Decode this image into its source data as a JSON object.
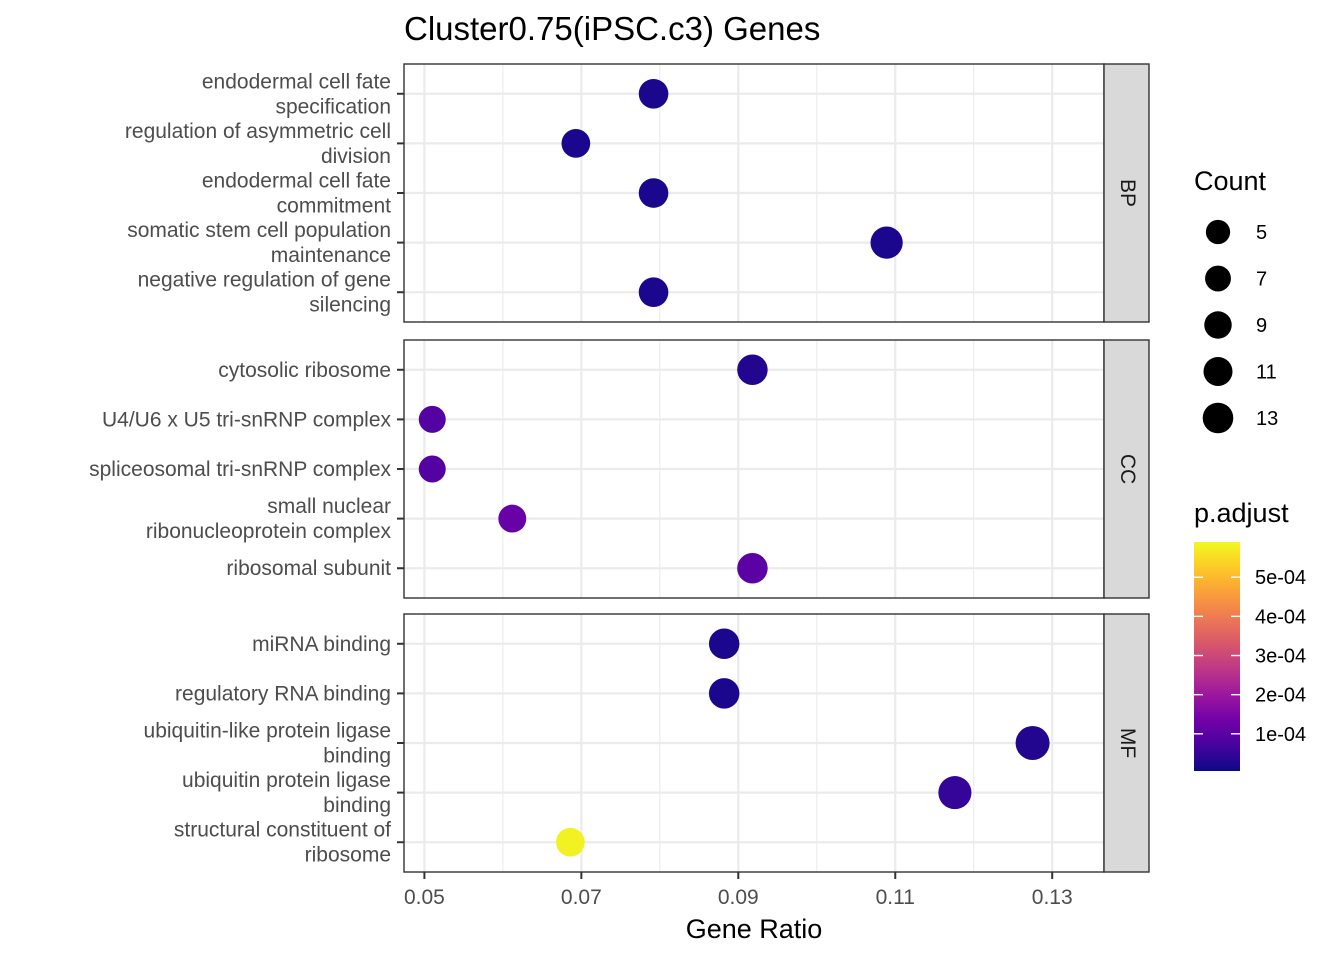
{
  "chart_data": {
    "type": "scatter",
    "title": "Cluster0.75(iPSC.c3) Genes",
    "xlabel": "Gene Ratio",
    "ylabel": "",
    "xlim": [
      0.0474,
      0.1366
    ],
    "x_ticks": [
      0.05,
      0.07,
      0.09,
      0.11,
      0.13
    ],
    "x_tick_labels": [
      "0.05",
      "0.07",
      "0.09",
      "0.11",
      "0.13"
    ],
    "grid": true,
    "facets": [
      {
        "name": "BP",
        "terms": [
          {
            "label": [
              "endodermal cell fate",
              "specification"
            ],
            "gene_ratio": 0.0792,
            "count": 8,
            "p_adjust": 2e-05
          },
          {
            "label": [
              "regulation of asymmetric cell",
              "division"
            ],
            "gene_ratio": 0.0693,
            "count": 7,
            "p_adjust": 2e-05
          },
          {
            "label": [
              "endodermal cell fate",
              "commitment"
            ],
            "gene_ratio": 0.0792,
            "count": 8,
            "p_adjust": 2e-05
          },
          {
            "label": [
              "somatic stem cell population",
              "maintenance"
            ],
            "gene_ratio": 0.1089,
            "count": 11,
            "p_adjust": 2e-05
          },
          {
            "label": [
              "negative regulation of gene",
              "silencing"
            ],
            "gene_ratio": 0.0792,
            "count": 8,
            "p_adjust": 2e-05
          }
        ]
      },
      {
        "name": "CC",
        "terms": [
          {
            "label": [
              "cytosolic ribosome"
            ],
            "gene_ratio": 0.0918,
            "count": 9,
            "p_adjust": 3e-05
          },
          {
            "label": [
              "U4/U6 x U5 tri-snRNP complex"
            ],
            "gene_ratio": 0.051,
            "count": 5,
            "p_adjust": 9e-05
          },
          {
            "label": [
              "spliceosomal tri-snRNP complex"
            ],
            "gene_ratio": 0.051,
            "count": 5,
            "p_adjust": 9e-05
          },
          {
            "label": [
              "small nuclear",
              "ribonucleoprotein complex"
            ],
            "gene_ratio": 0.0612,
            "count": 6,
            "p_adjust": 0.00012
          },
          {
            "label": [
              "ribosomal subunit"
            ],
            "gene_ratio": 0.0918,
            "count": 9,
            "p_adjust": 0.0001
          }
        ]
      },
      {
        "name": "MF",
        "terms": [
          {
            "label": [
              "miRNA binding"
            ],
            "gene_ratio": 0.0882,
            "count": 9,
            "p_adjust": 2e-05
          },
          {
            "label": [
              "regulatory RNA binding"
            ],
            "gene_ratio": 0.0882,
            "count": 9,
            "p_adjust": 2e-05
          },
          {
            "label": [
              "ubiquitin-like protein ligase",
              "binding"
            ],
            "gene_ratio": 0.1275,
            "count": 13,
            "p_adjust": 3e-05
          },
          {
            "label": [
              "ubiquitin protein ligase",
              "binding"
            ],
            "gene_ratio": 0.1176,
            "count": 12,
            "p_adjust": 5e-05
          },
          {
            "label": [
              "structural constituent of",
              "ribosome"
            ],
            "gene_ratio": 0.0686,
            "count": 7,
            "p_adjust": 0.00058
          }
        ]
      }
    ],
    "size_legend": {
      "title": "Count",
      "values": [
        5,
        7,
        9,
        11,
        13
      ],
      "labels": [
        "5",
        "7",
        "9",
        "11",
        "13"
      ]
    },
    "color_legend": {
      "title": "p.adjust",
      "min": 5e-06,
      "max": 0.00059,
      "breaks": [
        0.0001,
        0.0002,
        0.0003,
        0.0004,
        0.0005
      ],
      "labels": [
        "1e-04",
        "2e-04",
        "3e-04",
        "4e-04",
        "5e-04"
      ],
      "colormap": "plasma",
      "low_color": "#0d0887",
      "high_color": "#f0f921"
    },
    "colors": {
      "grid": "#ebebeb",
      "panel_border": "#333333",
      "strip_fill": "#d9d9d9",
      "axis_text": "#4d4d4d"
    }
  }
}
